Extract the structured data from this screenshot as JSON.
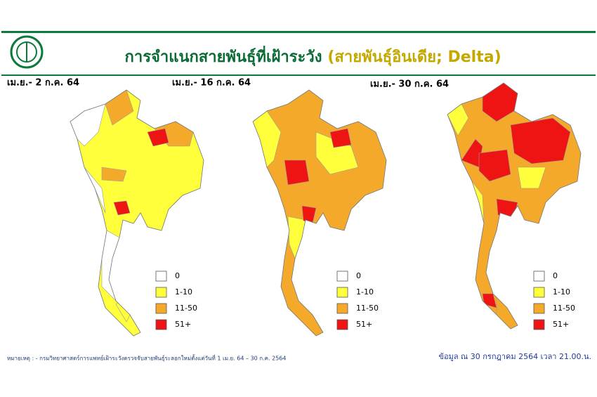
{
  "header": {
    "title": "การจำแนกสายพันธุ์ที่เฝ้าระวัง",
    "subtitle": "(สายพันธุ์อินเดีย; Delta)"
  },
  "maps": [
    {
      "label": "เม.ย.- 2 ก.ค. 64"
    },
    {
      "label": "เม.ย.- 16 ก.ค. 64"
    },
    {
      "label": "เม.ย.- 30 ก.ค. 64"
    }
  ],
  "legend": [
    {
      "label": "0",
      "color": "#ffffff"
    },
    {
      "label": "1-10",
      "color": "#ffff3c"
    },
    {
      "label": "11-50",
      "color": "#f5a92a"
    },
    {
      "label": "51+",
      "color": "#ee1414"
    }
  ],
  "footer": {
    "note": "หมายเหตุ : - กรมวิทยาศาสตร์การแพทย์เฝ้าระวังตรวจจับสายพันธุ์ระลอกใหม่ตั้งแต่วันที่ 1 เม.ย. 64 – 30 ก.ค. 2564",
    "source": "ข้อมูล ณ 30 กรกฎาคม 2564 เวลา 21.00.น."
  }
}
